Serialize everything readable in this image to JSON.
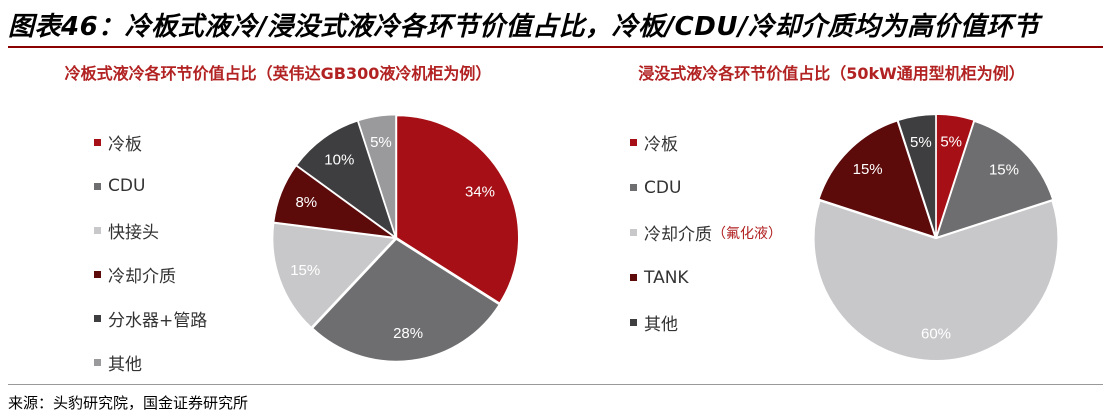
{
  "figure_title": "图表46：冷板式液冷/浸没式液冷各环节价值占比，冷板/CDU/冷却介质均为高价值环节",
  "source": "来源：头豹研究院，国金证券研究所",
  "chart_data": [
    {
      "type": "pie",
      "title": "冷板式液冷各环节价值占比（英伟达GB300液冷机柜为例）",
      "slices": [
        {
          "label": "冷板",
          "value": 34,
          "color": "#a50f15",
          "text": "34%"
        },
        {
          "label": "CDU",
          "value": 28,
          "color": "#6e6e70",
          "text": "28%"
        },
        {
          "label": "快接头",
          "value": 15,
          "color": "#c8c8ca",
          "text": "15%"
        },
        {
          "label": "冷却介质",
          "value": 8,
          "color": "#5c0a0a",
          "text": "8%"
        },
        {
          "label": "分水器+管路",
          "value": 10,
          "color": "#3e3e40",
          "text": "10%"
        },
        {
          "label": "其他",
          "value": 5,
          "color": "#9a9a9c",
          "text": "5%"
        }
      ]
    },
    {
      "type": "pie",
      "title": "浸没式液冷各环节价值占比（50kW通用型机柜为例）",
      "slices": [
        {
          "label": "冷板",
          "value": 5,
          "color": "#a50f15",
          "text": "5%"
        },
        {
          "label": "CDU",
          "value": 15,
          "color": "#6e6e70",
          "text": "15%"
        },
        {
          "label": "冷却介质",
          "note": "（氟化液）",
          "value": 60,
          "color": "#c8c8ca",
          "text": "60%"
        },
        {
          "label": "TANK",
          "value": 15,
          "color": "#5c0a0a",
          "text": "15%"
        },
        {
          "label": "其他",
          "value": 5,
          "color": "#3e3e40",
          "text": "5%"
        }
      ]
    }
  ]
}
